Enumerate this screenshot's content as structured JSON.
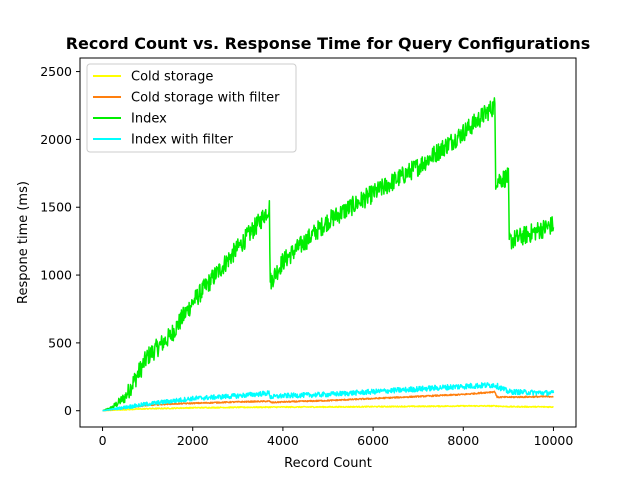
{
  "chart_data": {
    "type": "line",
    "title": "Record Count vs. Response Time for Query Configurations",
    "xlabel": "Record Count",
    "ylabel": "Respone time (ms)",
    "xlim": [
      -500,
      10500
    ],
    "ylim": [
      -120,
      2600
    ],
    "x_ticks": [
      0,
      2000,
      4000,
      6000,
      8000,
      10000
    ],
    "y_ticks": [
      0,
      500,
      1000,
      1500,
      2000,
      2500
    ],
    "legend_position": "upper-left",
    "grid": false,
    "series": [
      {
        "name": "Cold storage",
        "color": "#ffff00",
        "noise": 6,
        "x": [
          0,
          500,
          1000,
          1500,
          2000,
          3000,
          4000,
          5000,
          6000,
          7000,
          8000,
          8700,
          9000,
          10000
        ],
        "y": [
          0,
          8,
          15,
          18,
          22,
          25,
          27,
          28,
          30,
          32,
          35,
          35,
          30,
          28
        ]
      },
      {
        "name": "Cold storage with filter",
        "color": "#ff7f0e",
        "noise": 6,
        "x": [
          0,
          500,
          1000,
          1500,
          2000,
          3000,
          3700,
          3750,
          4000,
          5000,
          6000,
          7000,
          8000,
          8700,
          8750,
          9000,
          10000
        ],
        "y": [
          0,
          20,
          40,
          50,
          55,
          65,
          70,
          60,
          65,
          75,
          90,
          105,
          120,
          140,
          100,
          100,
          105
        ]
      },
      {
        "name": "Index",
        "color": "#00ee00",
        "noise": 70,
        "x": [
          0,
          200,
          500,
          800,
          1000,
          1500,
          2000,
          2500,
          3000,
          3500,
          3700,
          3720,
          4000,
          5000,
          6000,
          7000,
          8000,
          8700,
          8720,
          9000,
          9020,
          10000
        ],
        "y": [
          0,
          20,
          100,
          280,
          400,
          550,
          800,
          1000,
          1200,
          1400,
          1500,
          950,
          1100,
          1400,
          1600,
          1800,
          2050,
          2250,
          1700,
          1720,
          1250,
          1370
        ]
      },
      {
        "name": "Index with filter",
        "color": "#00ffff",
        "noise": 22,
        "x": [
          0,
          500,
          1000,
          1500,
          2000,
          3000,
          3700,
          3720,
          4000,
          5000,
          6000,
          7000,
          8000,
          8700,
          9000,
          10000
        ],
        "y": [
          0,
          25,
          50,
          70,
          90,
          110,
          130,
          100,
          110,
          120,
          140,
          160,
          180,
          190,
          140,
          130
        ]
      }
    ]
  }
}
